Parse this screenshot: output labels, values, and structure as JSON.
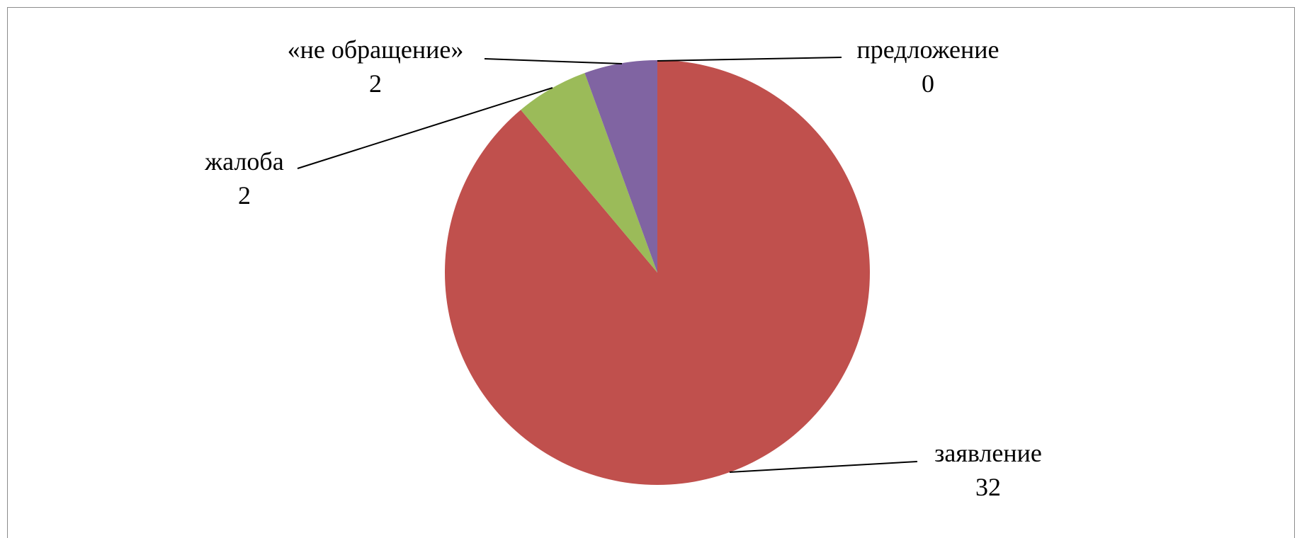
{
  "chart_data": {
    "type": "pie",
    "title": "",
    "slices": [
      {
        "label": "предложение",
        "value": 0,
        "color": "#1f497d"
      },
      {
        "label": "заявление",
        "value": 32,
        "color": "#c0504d"
      },
      {
        "label": "жалоба",
        "value": 2,
        "color": "#9bbb59"
      },
      {
        "label": "«не обращение»",
        "value": 2,
        "color": "#8064a2"
      }
    ],
    "data_labels": {
      "show_category": true,
      "show_value": true
    },
    "legend": "none"
  }
}
